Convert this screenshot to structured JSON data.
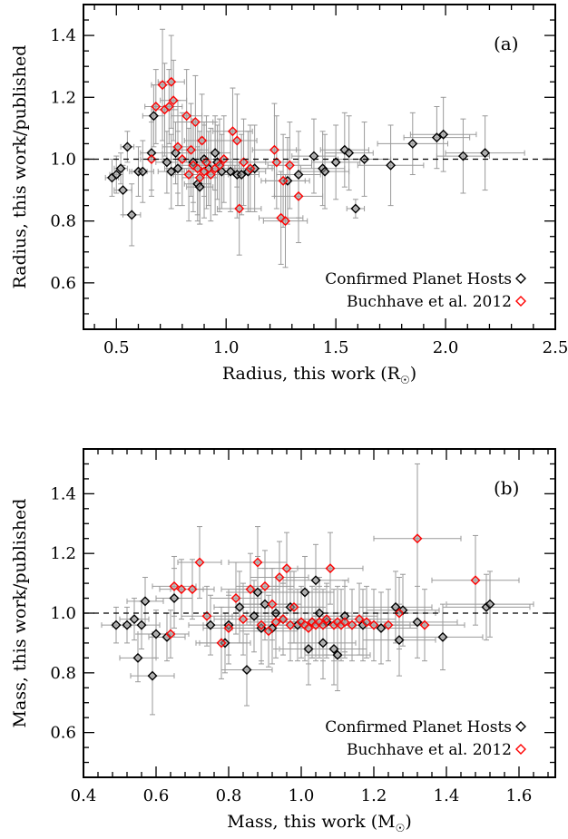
{
  "chart_data": [
    {
      "type": "scatter",
      "panel_label": "(a)",
      "xlabel": "Radius, this work (R",
      "xlabel_unit_symbol": "☉",
      "xlabel_suffix": ")",
      "ylabel": "Radius, this work/published",
      "xlim": [
        0.35,
        2.5
      ],
      "ylim": [
        0.45,
        1.5
      ],
      "x_ticks": [
        "0.5",
        "1.0",
        "1.5",
        "2.0",
        "2.5"
      ],
      "y_ticks": [
        "0.6",
        "0.8",
        "1.0",
        "1.2",
        "1.4"
      ],
      "reference_line": 1.0,
      "legend": [
        {
          "label": "Confirmed Planet Hosts",
          "color": "#000000"
        },
        {
          "label": "Buchhave et al. 2012",
          "color": "#ff0000"
        }
      ],
      "series": [
        {
          "name": "Confirmed Planet Hosts",
          "color": "#000000",
          "points": [
            [
              0.48,
              0.94,
              0.03,
              0.06
            ],
            [
              0.5,
              0.95,
              0.03,
              0.06
            ],
            [
              0.52,
              0.97,
              0.03,
              0.05
            ],
            [
              0.53,
              0.9,
              0.04,
              0.08
            ],
            [
              0.55,
              1.04,
              0.03,
              0.05
            ],
            [
              0.57,
              0.82,
              0.04,
              0.1
            ],
            [
              0.6,
              0.96,
              0.04,
              0.08
            ],
            [
              0.62,
              0.96,
              0.05,
              0.1
            ],
            [
              0.66,
              1.02,
              0.05,
              0.12
            ],
            [
              0.67,
              1.14,
              0.05,
              0.1
            ],
            [
              0.73,
              0.99,
              0.05,
              0.1
            ],
            [
              0.75,
              0.96,
              0.06,
              0.12
            ],
            [
              0.77,
              1.02,
              0.06,
              0.1
            ],
            [
              0.78,
              0.97,
              0.06,
              0.12
            ],
            [
              0.85,
              0.99,
              0.06,
              0.13
            ],
            [
              0.87,
              0.92,
              0.06,
              0.12
            ],
            [
              0.88,
              0.91,
              0.06,
              0.12
            ],
            [
              0.9,
              1.0,
              0.07,
              0.12
            ],
            [
              0.92,
              0.97,
              0.07,
              0.12
            ],
            [
              0.95,
              1.02,
              0.07,
              0.12
            ],
            [
              0.96,
              0.99,
              0.07,
              0.12
            ],
            [
              0.98,
              0.96,
              0.07,
              0.12
            ],
            [
              1.02,
              0.96,
              0.08,
              0.13
            ],
            [
              1.05,
              0.95,
              0.08,
              0.14
            ],
            [
              1.07,
              0.95,
              0.08,
              0.13
            ],
            [
              1.1,
              0.96,
              0.08,
              0.13
            ],
            [
              1.13,
              0.97,
              0.09,
              0.14
            ],
            [
              1.28,
              0.93,
              0.1,
              0.14
            ],
            [
              1.33,
              0.95,
              0.1,
              0.14
            ],
            [
              1.4,
              1.01,
              0.1,
              0.12
            ],
            [
              1.44,
              0.97,
              0.1,
              0.12
            ],
            [
              1.45,
              0.96,
              0.11,
              0.12
            ],
            [
              1.5,
              0.99,
              0.11,
              0.12
            ],
            [
              1.54,
              1.03,
              0.11,
              0.12
            ],
            [
              1.56,
              1.02,
              0.11,
              0.12
            ],
            [
              1.59,
              0.84,
              0.04,
              0.03
            ],
            [
              1.63,
              1.0,
              0.12,
              0.12
            ],
            [
              1.75,
              0.98,
              0.15,
              0.13
            ],
            [
              1.85,
              1.05,
              0.16,
              0.1
            ],
            [
              1.96,
              1.07,
              0.15,
              0.1
            ],
            [
              1.99,
              1.08,
              0.15,
              0.12
            ],
            [
              2.08,
              1.01,
              0.12,
              0.12
            ],
            [
              2.18,
              1.02,
              0.18,
              0.12
            ]
          ]
        },
        {
          "name": "Buchhave et al. 2012",
          "color": "#ff0000",
          "points": [
            [
              0.66,
              1.0,
              0.05,
              0.12
            ],
            [
              0.68,
              1.17,
              0.05,
              0.12
            ],
            [
              0.71,
              1.24,
              0.05,
              0.18
            ],
            [
              0.72,
              1.16,
              0.06,
              0.15
            ],
            [
              0.74,
              1.17,
              0.06,
              0.12
            ],
            [
              0.75,
              1.25,
              0.06,
              0.15
            ],
            [
              0.76,
              1.19,
              0.06,
              0.13
            ],
            [
              0.78,
              1.04,
              0.07,
              0.15
            ],
            [
              0.8,
              1.0,
              0.07,
              0.15
            ],
            [
              0.82,
              1.14,
              0.07,
              0.15
            ],
            [
              0.83,
              0.95,
              0.07,
              0.15
            ],
            [
              0.84,
              1.03,
              0.08,
              0.15
            ],
            [
              0.85,
              0.98,
              0.08,
              0.15
            ],
            [
              0.86,
              1.12,
              0.08,
              0.15
            ],
            [
              0.87,
              0.97,
              0.08,
              0.15
            ],
            [
              0.88,
              0.94,
              0.08,
              0.15
            ],
            [
              0.89,
              1.06,
              0.08,
              0.15
            ],
            [
              0.9,
              0.96,
              0.08,
              0.15
            ],
            [
              0.91,
              0.99,
              0.08,
              0.15
            ],
            [
              0.93,
              0.95,
              0.08,
              0.15
            ],
            [
              0.95,
              0.97,
              0.09,
              0.15
            ],
            [
              0.97,
              0.98,
              0.09,
              0.15
            ],
            [
              0.99,
              1.0,
              0.09,
              0.14
            ],
            [
              1.03,
              1.09,
              0.09,
              0.14
            ],
            [
              1.05,
              1.06,
              0.09,
              0.15
            ],
            [
              1.06,
              0.84,
              0.1,
              0.15
            ],
            [
              1.08,
              0.99,
              0.1,
              0.14
            ],
            [
              1.11,
              0.97,
              0.1,
              0.14
            ],
            [
              1.22,
              1.03,
              0.1,
              0.15
            ],
            [
              1.23,
              0.99,
              0.1,
              0.15
            ],
            [
              1.25,
              0.81,
              0.1,
              0.15
            ],
            [
              1.26,
              0.93,
              0.1,
              0.15
            ],
            [
              1.27,
              0.8,
              0.1,
              0.15
            ],
            [
              1.29,
              0.98,
              0.1,
              0.14
            ],
            [
              1.33,
              0.88,
              0.11,
              0.15
            ]
          ]
        }
      ]
    },
    {
      "type": "scatter",
      "panel_label": "(b)",
      "xlabel": "Mass, this work (M",
      "xlabel_unit_symbol": "☉",
      "xlabel_suffix": ")",
      "ylabel": "Mass, this work/published",
      "xlim": [
        0.4,
        1.7
      ],
      "ylim": [
        0.45,
        1.55
      ],
      "x_ticks": [
        "0.4",
        "0.6",
        "0.8",
        "1.0",
        "1.2",
        "1.4",
        "1.6"
      ],
      "y_ticks": [
        "0.6",
        "0.8",
        "1.0",
        "1.2",
        "1.4"
      ],
      "reference_line": 1.0,
      "legend": [
        {
          "label": "Confirmed Planet Hosts",
          "color": "#000000"
        },
        {
          "label": "Buchhave et al. 2012",
          "color": "#ff0000"
        }
      ],
      "series": [
        {
          "name": "Confirmed Planet Hosts",
          "color": "#000000",
          "points": [
            [
              0.49,
              0.96,
              0.04,
              0.06
            ],
            [
              0.52,
              0.96,
              0.04,
              0.06
            ],
            [
              0.54,
              0.98,
              0.04,
              0.07
            ],
            [
              0.55,
              0.85,
              0.05,
              0.08
            ],
            [
              0.56,
              0.96,
              0.05,
              0.08
            ],
            [
              0.57,
              1.04,
              0.05,
              0.08
            ],
            [
              0.59,
              0.79,
              0.06,
              0.13
            ],
            [
              0.6,
              0.93,
              0.05,
              0.08
            ],
            [
              0.63,
              0.92,
              0.05,
              0.08
            ],
            [
              0.65,
              1.05,
              0.05,
              0.1
            ],
            [
              0.75,
              0.96,
              0.06,
              0.1
            ],
            [
              0.79,
              0.9,
              0.07,
              0.1
            ],
            [
              0.8,
              0.96,
              0.07,
              0.1
            ],
            [
              0.83,
              1.02,
              0.07,
              0.12
            ],
            [
              0.85,
              0.81,
              0.07,
              0.12
            ],
            [
              0.87,
              0.99,
              0.08,
              0.12
            ],
            [
              0.88,
              1.07,
              0.08,
              0.12
            ],
            [
              0.89,
              0.95,
              0.08,
              0.12
            ],
            [
              0.9,
              1.03,
              0.08,
              0.12
            ],
            [
              0.92,
              0.95,
              0.08,
              0.12
            ],
            [
              0.93,
              1.0,
              0.08,
              0.12
            ],
            [
              0.95,
              0.98,
              0.08,
              0.12
            ],
            [
              0.97,
              1.02,
              0.08,
              0.12
            ],
            [
              0.99,
              0.96,
              0.08,
              0.12
            ],
            [
              1.01,
              1.07,
              0.08,
              0.12
            ],
            [
              1.02,
              0.88,
              0.08,
              0.12
            ],
            [
              1.03,
              0.97,
              0.09,
              0.12
            ],
            [
              1.04,
              1.11,
              0.09,
              0.12
            ],
            [
              1.05,
              1.0,
              0.09,
              0.12
            ],
            [
              1.06,
              0.9,
              0.09,
              0.12
            ],
            [
              1.07,
              0.97,
              0.09,
              0.12
            ],
            [
              1.09,
              0.88,
              0.09,
              0.12
            ],
            [
              1.1,
              0.86,
              0.09,
              0.12
            ],
            [
              1.12,
              0.99,
              0.09,
              0.12
            ],
            [
              1.17,
              0.96,
              0.1,
              0.12
            ],
            [
              1.22,
              0.95,
              0.1,
              0.12
            ],
            [
              1.26,
              1.02,
              0.1,
              0.12
            ],
            [
              1.27,
              0.91,
              0.1,
              0.12
            ],
            [
              1.28,
              1.01,
              0.1,
              0.12
            ],
            [
              1.32,
              0.97,
              0.11,
              0.12
            ],
            [
              1.39,
              0.92,
              0.11,
              0.11
            ],
            [
              1.51,
              1.02,
              0.12,
              0.11
            ],
            [
              1.52,
              1.03,
              0.12,
              0.11
            ]
          ]
        },
        {
          "name": "Buchhave et al. 2012",
          "color": "#ff0000",
          "points": [
            [
              0.64,
              0.93,
              0.05,
              0.08
            ],
            [
              0.65,
              1.09,
              0.06,
              0.1
            ],
            [
              0.67,
              1.08,
              0.06,
              0.1
            ],
            [
              0.7,
              1.08,
              0.06,
              0.1
            ],
            [
              0.72,
              1.17,
              0.06,
              0.12
            ],
            [
              0.74,
              0.99,
              0.07,
              0.1
            ],
            [
              0.78,
              0.9,
              0.07,
              0.12
            ],
            [
              0.8,
              0.95,
              0.07,
              0.12
            ],
            [
              0.82,
              1.05,
              0.07,
              0.12
            ],
            [
              0.84,
              0.98,
              0.08,
              0.12
            ],
            [
              0.86,
              1.08,
              0.08,
              0.12
            ],
            [
              0.88,
              1.17,
              0.08,
              0.12
            ],
            [
              0.89,
              0.96,
              0.08,
              0.12
            ],
            [
              0.9,
              1.09,
              0.08,
              0.12
            ],
            [
              0.91,
              0.94,
              0.08,
              0.12
            ],
            [
              0.92,
              1.03,
              0.08,
              0.12
            ],
            [
              0.93,
              0.97,
              0.08,
              0.12
            ],
            [
              0.94,
              1.12,
              0.08,
              0.12
            ],
            [
              0.95,
              0.98,
              0.08,
              0.12
            ],
            [
              0.96,
              1.15,
              0.08,
              0.12
            ],
            [
              0.97,
              0.96,
              0.08,
              0.12
            ],
            [
              0.98,
              1.02,
              0.08,
              0.12
            ],
            [
              1.0,
              0.97,
              0.09,
              0.12
            ],
            [
              1.01,
              0.96,
              0.09,
              0.12
            ],
            [
              1.02,
              0.95,
              0.09,
              0.12
            ],
            [
              1.03,
              0.97,
              0.09,
              0.12
            ],
            [
              1.04,
              0.96,
              0.09,
              0.12
            ],
            [
              1.05,
              0.97,
              0.09,
              0.12
            ],
            [
              1.06,
              0.96,
              0.09,
              0.12
            ],
            [
              1.07,
              0.98,
              0.09,
              0.12
            ],
            [
              1.08,
              1.15,
              0.09,
              0.12
            ],
            [
              1.09,
              0.96,
              0.09,
              0.12
            ],
            [
              1.1,
              0.97,
              0.09,
              0.12
            ],
            [
              1.11,
              0.96,
              0.09,
              0.12
            ],
            [
              1.12,
              0.97,
              0.1,
              0.12
            ],
            [
              1.14,
              0.96,
              0.1,
              0.12
            ],
            [
              1.16,
              0.98,
              0.1,
              0.12
            ],
            [
              1.18,
              0.97,
              0.1,
              0.12
            ],
            [
              1.2,
              0.96,
              0.1,
              0.12
            ],
            [
              1.24,
              0.96,
              0.1,
              0.12
            ],
            [
              1.27,
              1.0,
              0.1,
              0.12
            ],
            [
              1.32,
              1.25,
              0.12,
              0.25
            ],
            [
              1.34,
              0.96,
              0.11,
              0.12
            ],
            [
              1.48,
              1.11,
              0.12,
              0.15
            ]
          ]
        }
      ]
    }
  ]
}
